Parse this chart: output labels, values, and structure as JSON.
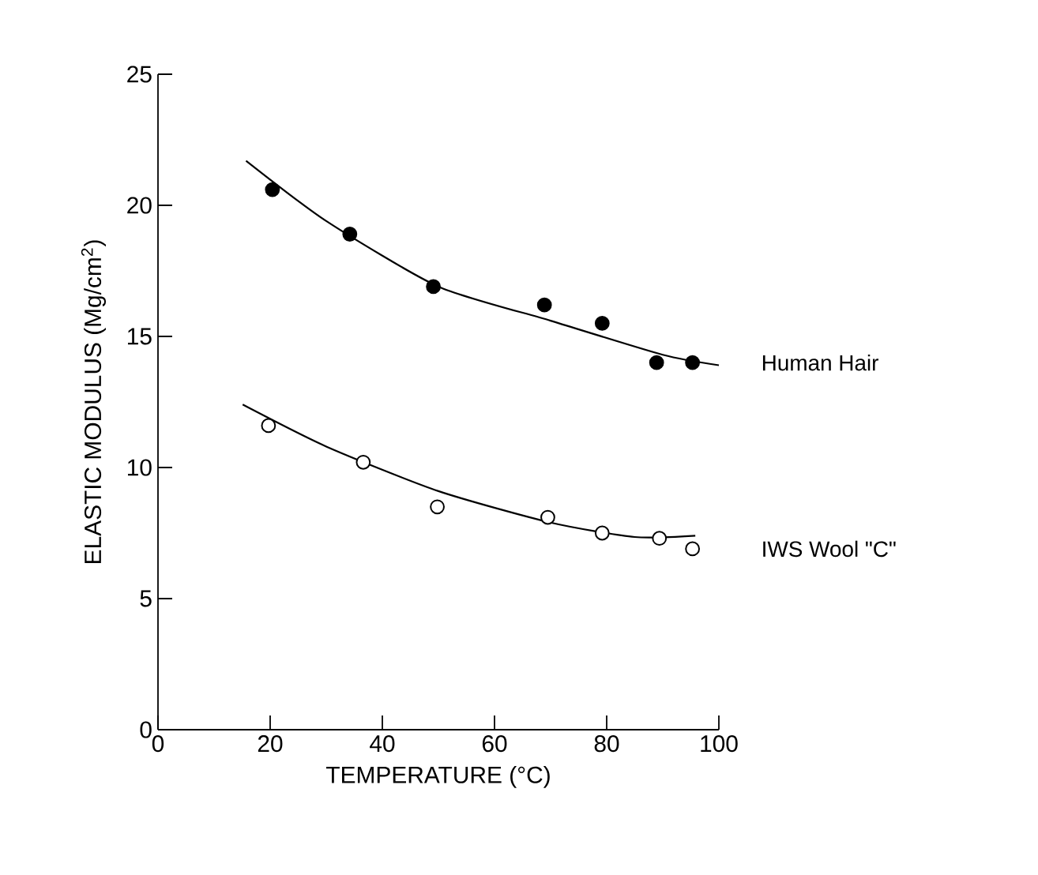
{
  "chart_data": {
    "type": "scatter",
    "xlabel": "TEMPERATURE (°C)",
    "ylabel": "ELASTIC MODULUS  (Mg/cm$^{2}$)",
    "xlim": [
      0,
      100
    ],
    "ylim": [
      0,
      25
    ],
    "xticks": [
      0,
      20,
      40,
      60,
      80,
      100
    ],
    "yticks": [
      0,
      5,
      10,
      15,
      20,
      25
    ],
    "grid": false,
    "marker": "circle",
    "series": [
      {
        "name": "Human Hair",
        "color": "#000000",
        "x": [
          20.4,
          34.2,
          49.1,
          68.9,
          79.2,
          88.9,
          95.3
        ],
        "values": [
          20.6,
          18.9,
          16.9,
          16.2,
          15.5,
          14.0,
          14.0
        ]
      },
      {
        "name": "IWS Wool \"C\"",
        "color": "#ffffff",
        "x": [
          19.7,
          36.6,
          49.8,
          69.5,
          79.2,
          89.4,
          95.3
        ],
        "values": [
          11.6,
          10.2,
          8.5,
          8.1,
          7.5,
          7.3,
          6.9
        ]
      },
      {
        "type": "line",
        "marker": "none",
        "color": "#000000",
        "x": [
          15.7,
          30,
          50,
          70,
          90,
          100
        ],
        "values": [
          21.7,
          19.4,
          16.9,
          15.6,
          14.3,
          13.9
        ]
      },
      {
        "type": "line",
        "marker": "none",
        "color": "#000000",
        "x": [
          15.1,
          30,
          50,
          70,
          85,
          95.8
        ],
        "values": [
          12.4,
          10.8,
          9.1,
          7.9,
          7.35,
          7.4
        ]
      }
    ]
  }
}
